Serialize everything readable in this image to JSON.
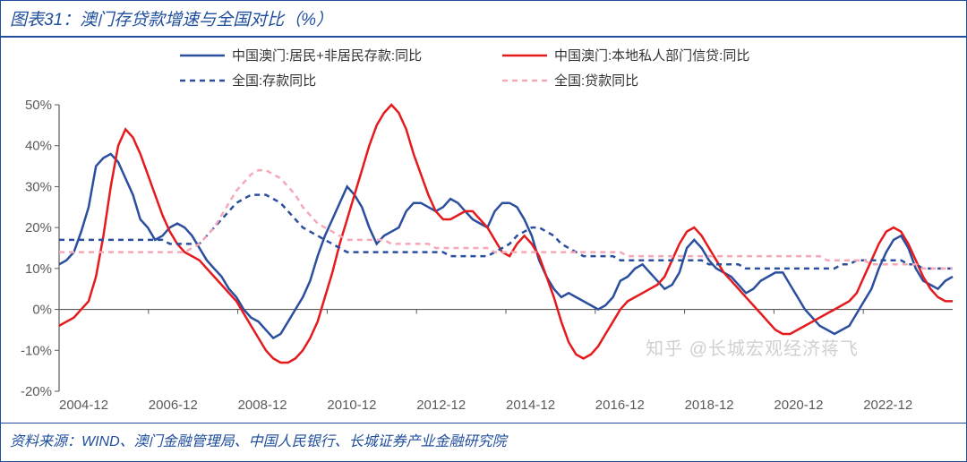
{
  "title": "图表31：澳门存贷款增速与全国对比（%）",
  "source": "资料来源：WIND、澳门金融管理局、中国人民银行、长城证券产业金融研究院",
  "watermark": "知乎 @长城宏观经济蒋飞",
  "chart": {
    "type": "line",
    "background_color": "#ffffff",
    "title_fontsize": 19,
    "title_color": "#1f4e9c",
    "source_fontsize": 16,
    "ylim": [
      -20,
      50
    ],
    "ytick_step": 10,
    "yticks": [
      -20,
      -10,
      0,
      10,
      20,
      30,
      40,
      50
    ],
    "ytick_labels": [
      "-20%",
      "-10%",
      "0%",
      "10%",
      "20%",
      "30%",
      "40%",
      "50%"
    ],
    "axis_color": "#5a5a5a",
    "axis_fontsize": 15,
    "x_categories": [
      "2004-12",
      "2006-12",
      "2008-12",
      "2010-12",
      "2012-12",
      "2014-12",
      "2016-12",
      "2018-12",
      "2020-12",
      "2022-12"
    ],
    "legend": {
      "position": "top-center",
      "fontsize": 15,
      "line_length": 50,
      "items": [
        {
          "label": "中国澳门:居民+非居民存款:同比",
          "color": "#2b4f9e",
          "dash": "solid",
          "width": 2.5
        },
        {
          "label": "中国澳门:本地私人部门信贷:同比",
          "color": "#e41a1c",
          "dash": "solid",
          "width": 2.5
        },
        {
          "label": "全国:存款同比",
          "color": "#2b4f9e",
          "dash": "6,5",
          "width": 2.5
        },
        {
          "label": "全国:贷款同比",
          "color": "#f5a9b8",
          "dash": "6,5",
          "width": 2.5
        }
      ]
    },
    "series": [
      {
        "name": "macau_deposits",
        "color": "#2b4f9e",
        "dash": "none",
        "width": 2.5,
        "data": [
          11,
          12,
          14,
          19,
          25,
          35,
          37,
          38,
          36,
          32,
          28,
          22,
          20,
          17,
          18,
          20,
          21,
          20,
          18,
          15,
          12,
          10,
          8,
          5,
          3,
          0,
          -2,
          -3,
          -5,
          -7,
          -6,
          -3,
          0,
          3,
          7,
          13,
          18,
          22,
          26,
          30,
          28,
          25,
          20,
          16,
          18,
          19,
          20,
          24,
          26,
          26,
          25,
          24,
          25,
          27,
          26,
          24,
          22,
          21,
          20,
          24,
          26,
          26,
          25,
          22,
          18,
          12,
          8,
          5,
          3,
          4,
          3,
          2,
          1,
          0,
          1,
          3,
          7,
          8,
          10,
          11,
          9,
          7,
          5,
          6,
          9,
          15,
          17,
          15,
          12,
          10,
          9,
          8,
          6,
          4,
          5,
          7,
          8,
          9,
          9,
          6,
          3,
          0,
          -2,
          -4,
          -5,
          -6,
          -5,
          -4,
          -1,
          2,
          5,
          10,
          14,
          17,
          18,
          15,
          10,
          7,
          6,
          5,
          7,
          8
        ]
      },
      {
        "name": "macau_credit",
        "color": "#e41a1c",
        "dash": "none",
        "width": 2.5,
        "data": [
          -4,
          -3,
          -2,
          0,
          2,
          8,
          18,
          30,
          40,
          44,
          42,
          38,
          33,
          28,
          23,
          19,
          16,
          14,
          13,
          12,
          10,
          8,
          6,
          4,
          2,
          -1,
          -4,
          -7,
          -10,
          -12,
          -13,
          -13,
          -12,
          -10,
          -7,
          -3,
          3,
          9,
          16,
          22,
          28,
          34,
          40,
          45,
          48,
          50,
          48,
          44,
          38,
          33,
          28,
          24,
          22,
          22,
          23,
          24,
          24,
          22,
          20,
          17,
          14,
          13,
          16,
          18,
          16,
          13,
          8,
          3,
          -3,
          -8,
          -11,
          -12,
          -11,
          -9,
          -6,
          -3,
          0,
          2,
          3,
          4,
          5,
          6,
          8,
          12,
          16,
          19,
          20,
          18,
          15,
          12,
          9,
          7,
          5,
          3,
          1,
          -1,
          -3,
          -5,
          -6,
          -6,
          -5,
          -4,
          -3,
          -2,
          -1,
          0,
          1,
          2,
          4,
          8,
          12,
          16,
          19,
          20,
          19,
          16,
          12,
          8,
          5,
          3,
          2,
          2
        ]
      },
      {
        "name": "national_deposits",
        "color": "#2b4f9e",
        "dash": "6,5",
        "width": 2.5,
        "data": [
          17,
          17,
          17,
          17,
          17,
          17,
          17,
          17,
          17,
          17,
          17,
          17,
          17,
          17,
          17,
          16,
          16,
          16,
          16,
          16,
          18,
          20,
          22,
          24,
          26,
          27,
          28,
          28,
          28,
          27,
          26,
          24,
          22,
          20,
          19,
          18,
          17,
          16,
          15,
          14,
          14,
          14,
          14,
          14,
          14,
          14,
          14,
          14,
          14,
          14,
          14,
          14,
          14,
          13,
          13,
          13,
          13,
          13,
          13,
          14,
          15,
          16,
          18,
          19,
          20,
          20,
          19,
          18,
          16,
          15,
          14,
          13,
          13,
          13,
          13,
          13,
          12,
          12,
          12,
          12,
          12,
          12,
          12,
          12,
          12,
          12,
          12,
          12,
          11,
          11,
          11,
          11,
          11,
          10,
          10,
          10,
          10,
          10,
          10,
          10,
          10,
          10,
          10,
          10,
          10,
          10,
          11,
          11,
          12,
          12,
          12,
          12,
          12,
          12,
          12,
          11,
          11,
          10,
          10,
          10,
          10,
          10
        ]
      },
      {
        "name": "national_loans",
        "color": "#f5a9b8",
        "dash": "6,5",
        "width": 2.5,
        "data": [
          14,
          14,
          14,
          14,
          14,
          14,
          14,
          14,
          14,
          14,
          14,
          14,
          14,
          14,
          14,
          14,
          14,
          14,
          15,
          16,
          18,
          20,
          23,
          26,
          29,
          31,
          33,
          34,
          34,
          33,
          32,
          30,
          28,
          25,
          23,
          21,
          20,
          19,
          18,
          17,
          17,
          17,
          17,
          17,
          17,
          16,
          16,
          16,
          16,
          16,
          16,
          15,
          15,
          15,
          15,
          15,
          15,
          15,
          15,
          14,
          14,
          14,
          14,
          14,
          14,
          14,
          14,
          14,
          14,
          14,
          14,
          14,
          14,
          14,
          14,
          14,
          14,
          13,
          13,
          13,
          13,
          13,
          13,
          13,
          13,
          13,
          13,
          13,
          13,
          13,
          13,
          13,
          13,
          13,
          13,
          13,
          13,
          13,
          13,
          13,
          13,
          13,
          13,
          13,
          12,
          12,
          12,
          12,
          12,
          12,
          11,
          11,
          11,
          11,
          11,
          11,
          11,
          10,
          10,
          10,
          10,
          10
        ]
      }
    ]
  }
}
